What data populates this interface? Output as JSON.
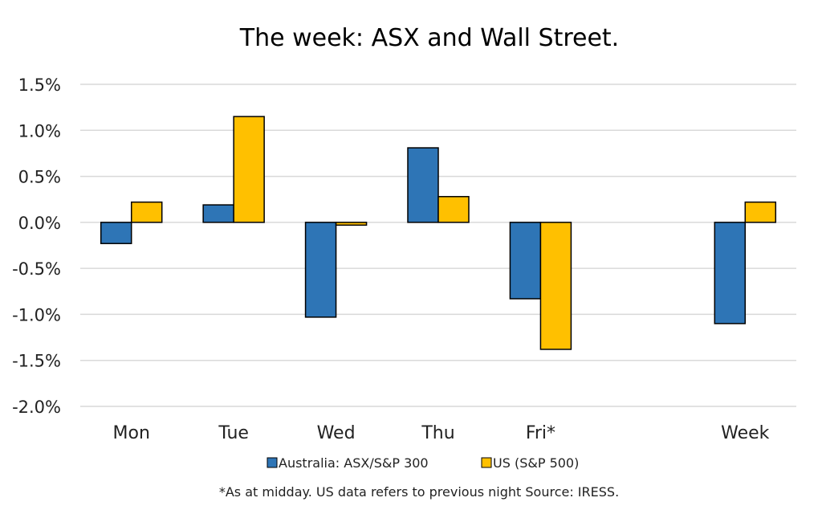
{
  "chart_data": {
    "type": "bar",
    "title": "The week:  ASX and Wall Street.",
    "xlabel": "",
    "ylabel": "",
    "categories": [
      "Mon",
      "Tue",
      "Wed",
      "Thu",
      "Fri*",
      "",
      "Week"
    ],
    "series": [
      {
        "name": "Australia: ASX/S&P 300",
        "color": "#2e75b6",
        "values": [
          -0.23,
          0.19,
          -1.03,
          0.81,
          -0.83,
          null,
          -1.1
        ]
      },
      {
        "name": "US (S&P 500)",
        "color": "#ffc000",
        "values": [
          0.22,
          1.15,
          -0.03,
          0.28,
          -1.38,
          null,
          0.22
        ]
      }
    ],
    "ylim": [
      -2.0,
      1.5
    ],
    "yticks": [
      1.5,
      1.0,
      0.5,
      0.0,
      -0.5,
      -1.0,
      -1.5,
      -2.0
    ],
    "ytick_labels": [
      "1.5%",
      "1.0%",
      "0.5%",
      "0.0%",
      "-0.5%",
      "-1.0%",
      "-1.5%",
      "-2.0%"
    ],
    "grid": true,
    "legend_position": "bottom",
    "footnote": "*As at midday. US data refers to previous night  Source:  IRESS."
  }
}
